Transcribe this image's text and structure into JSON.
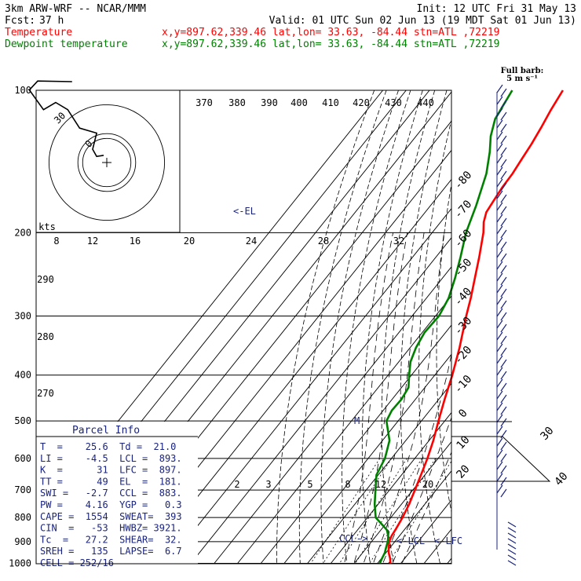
{
  "header": {
    "model": "3km ARW-WRF -- NCAR/MMM",
    "init": "Init: 12 UTC Fri 31 May 13",
    "fcst_label": "Fcst:",
    "fcst_value": "37 h",
    "valid": "Valid: 01 UTC Sun 02 Jun 13 (19 MDT Sat 01 Jun 13)",
    "temp_legend": "Temperature",
    "dew_legend": "Dewpoint temperature",
    "location": "x,y=897.62,339.46   lat,lon= 33.63, -84.44   stn=ATL ,72219",
    "barb_note_1": "Full barb:",
    "barb_note_2": "5 m s⁻¹"
  },
  "colors": {
    "temperature": "#ff0000",
    "dewpoint": "#008000",
    "annot": "#1a237e",
    "grid": "#000000"
  },
  "chart_data": {
    "type": "line",
    "title": "",
    "xlabel": "",
    "ylabel": "",
    "pressure_levels": [
      100,
      200,
      300,
      400,
      500,
      600,
      700,
      800,
      900,
      1000
    ],
    "isotherm_labels": [
      "-80",
      "-70",
      "-60",
      "-50",
      "-40",
      "-30",
      "-20",
      "-10",
      "0",
      "10",
      "20",
      "30",
      "40"
    ],
    "theta_labels": [
      "370",
      "380",
      "390",
      "400",
      "410",
      "420",
      "430",
      "440"
    ],
    "theta_left_labels": [
      "290",
      "280",
      "270"
    ],
    "mixing_ratio_labels": [
      "2",
      "3",
      "5",
      "8",
      "12",
      "20"
    ],
    "hodo_speed_labels": [
      "8",
      "12",
      "16",
      "20",
      "24",
      "28",
      "32"
    ],
    "hodo_unit": "kts",
    "series": [
      {
        "name": "Temperature",
        "color": "#ff0000",
        "points": [
          [
            1000,
            25.6
          ],
          [
            975,
            23.6
          ],
          [
            950,
            21.2
          ],
          [
            925,
            19.3
          ],
          [
            900,
            17.6
          ],
          [
            875,
            16.6
          ],
          [
            850,
            16.2
          ],
          [
            800,
            15.0
          ],
          [
            750,
            13.3
          ],
          [
            700,
            10.9
          ],
          [
            650,
            8.3
          ],
          [
            600,
            5.4
          ],
          [
            550,
            1.8
          ],
          [
            500,
            -2.7
          ],
          [
            450,
            -7.5
          ],
          [
            400,
            -12.5
          ],
          [
            350,
            -18.8
          ],
          [
            300,
            -26.8
          ],
          [
            275,
            -31.0
          ],
          [
            250,
            -36.0
          ],
          [
            225,
            -41.5
          ],
          [
            200,
            -48.0
          ],
          [
            190,
            -51.5
          ],
          [
            181,
            -53.8
          ],
          [
            170,
            -54.7
          ],
          [
            160,
            -55.5
          ],
          [
            150,
            -55.8
          ],
          [
            140,
            -56.8
          ],
          [
            130,
            -57.8
          ],
          [
            120,
            -59.3
          ],
          [
            110,
            -61.2
          ],
          [
            100,
            -62.8
          ]
        ]
      },
      {
        "name": "Dewpoint temperature",
        "color": "#008000",
        "points": [
          [
            1000,
            21.0
          ],
          [
            975,
            20.2
          ],
          [
            950,
            19.5
          ],
          [
            925,
            18.2
          ],
          [
            900,
            17.0
          ],
          [
            875,
            15.2
          ],
          [
            850,
            12.6
          ],
          [
            800,
            3.5
          ],
          [
            750,
            -1.5
          ],
          [
            700,
            -6.0
          ],
          [
            650,
            -10.8
          ],
          [
            600,
            -12.8
          ],
          [
            550,
            -17.0
          ],
          [
            500,
            -25.0
          ],
          [
            475,
            -26.3
          ],
          [
            450,
            -26.0
          ],
          [
            425,
            -27.0
          ],
          [
            400,
            -31.0
          ],
          [
            375,
            -35.0
          ],
          [
            350,
            -37.5
          ],
          [
            325,
            -39.0
          ],
          [
            300,
            -38.5
          ],
          [
            275,
            -40.5
          ],
          [
            250,
            -44.5
          ],
          [
            225,
            -49.5
          ],
          [
            200,
            -55.5
          ],
          [
            175,
            -60.5
          ],
          [
            150,
            -67.0
          ],
          [
            135,
            -73.0
          ],
          [
            125,
            -78.0
          ],
          [
            115,
            -82.0
          ],
          [
            100,
            -84.5
          ]
        ]
      }
    ],
    "annotations": {
      "el": "<-EL",
      "ccl": "CCL->",
      "lcl": "<-LCL",
      "lfc": "<-LFC",
      "m": "M"
    },
    "hodograph": [
      [
        -1.1,
        2.5
      ],
      [
        -3.5,
        2.1
      ],
      [
        -4.9,
        4.6
      ],
      [
        -3.5,
        10.2
      ],
      [
        -9.4,
        11.9
      ],
      [
        -13.5,
        18.3
      ],
      [
        -17.7,
        20.8
      ],
      [
        -21.9,
        18.3
      ],
      [
        -26.8,
        25.1
      ],
      [
        -23.9,
        28.2
      ],
      [
        -12.0,
        28.0
      ]
    ]
  },
  "parcel_info": {
    "title": "Parcel Info",
    "rows": [
      "T  =    25.6  Td =  21.0",
      "LI =    -4.5  LCL =  893.",
      "K  =      31  LFC =  897.",
      "TT =      49  EL  =  181.",
      "SWI =   -2.7  CCL =  883.",
      "PW =    4.16  YGP =   0.3",
      "CAPE =  1554  SWEAT=  393",
      "CIN  =   -53  HWBZ= 3921.",
      "Tc  =   27.2  SHEAR=  32.",
      "SREH =   135  LAPSE=  6.7",
      "CELL = 252/16"
    ]
  }
}
